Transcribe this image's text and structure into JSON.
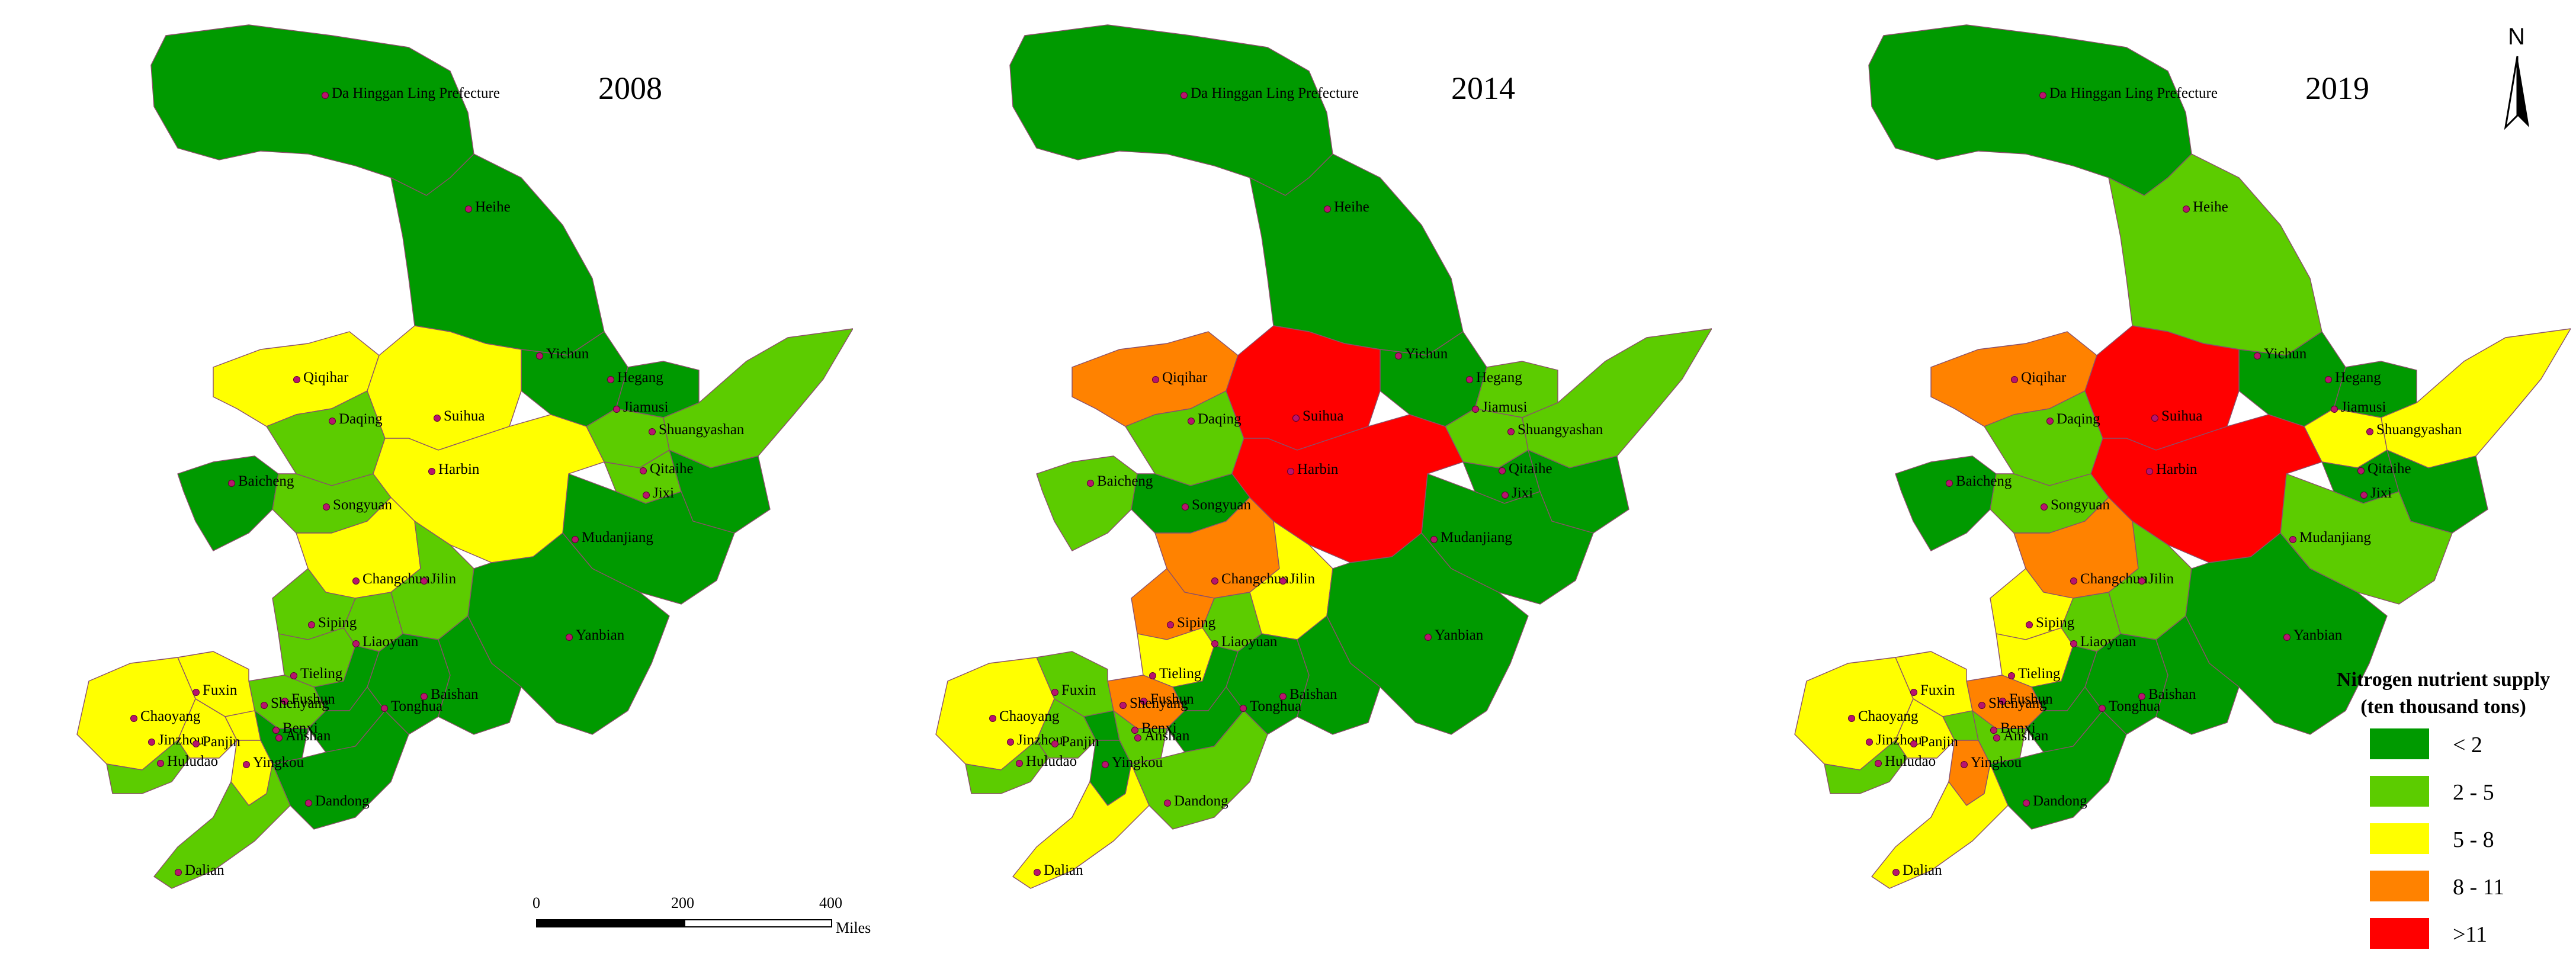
{
  "maps": [
    {
      "year": "2008",
      "classes": {
        "Da Hinggan Ling Prefecture": "lt2",
        "Heihe": "lt2",
        "Yichun": "lt2",
        "Hegang": "lt2",
        "Jiamusi": "c2_5",
        "Shuangyashan": "c2_5",
        "Qitaihe": "c2_5",
        "Jixi": "lt2",
        "Mudanjiang": "lt2",
        "Qiqihar": "c5_8",
        "Daqing": "c2_5",
        "Suihua": "c5_8",
        "Harbin": "c5_8",
        "Baicheng": "lt2",
        "Songyuan": "c2_5",
        "Changchun": "c5_8",
        "Jilin": "c2_5",
        "Siping": "c2_5",
        "Liaoyuan": "c2_5",
        "Yanbian": "lt2",
        "Tonghua": "lt2",
        "Baishan": "lt2",
        "Tieling": "c2_5",
        "Fushun": "lt2",
        "Shenyang": "c2_5",
        "Fuxin": "c5_8",
        "Chaoyang": "c5_8",
        "Jinzhou": "c5_8",
        "Huludao": "c2_5",
        "Panjin": "c5_8",
        "Anshan": "lt2",
        "Benxi": "lt2",
        "Yingkou": "c5_8",
        "Dandong": "lt2",
        "Dalian": "c2_5"
      }
    },
    {
      "year": "2014",
      "classes": {
        "Da Hinggan Ling Prefecture": "lt2",
        "Heihe": "lt2",
        "Yichun": "lt2",
        "Hegang": "c2_5",
        "Jiamusi": "c2_5",
        "Shuangyashan": "c2_5",
        "Qitaihe": "lt2",
        "Jixi": "lt2",
        "Mudanjiang": "lt2",
        "Qiqihar": "c8_11",
        "Daqing": "c2_5",
        "Suihua": "gt11",
        "Harbin": "gt11",
        "Baicheng": "c2_5",
        "Songyuan": "lt2",
        "Changchun": "c8_11",
        "Jilin": "c5_8",
        "Siping": "c8_11",
        "Liaoyuan": "c2_5",
        "Yanbian": "lt2",
        "Tonghua": "lt2",
        "Baishan": "lt2",
        "Tieling": "c5_8",
        "Fushun": "lt2",
        "Shenyang": "c8_11",
        "Fuxin": "c2_5",
        "Chaoyang": "c5_8",
        "Jinzhou": "c2_5",
        "Huludao": "c2_5",
        "Panjin": "lt2",
        "Anshan": "c2_5",
        "Benxi": "lt2",
        "Yingkou": "lt2",
        "Dandong": "c2_5",
        "Dalian": "c5_8"
      }
    },
    {
      "year": "2019",
      "classes": {
        "Da Hinggan Ling Prefecture": "lt2",
        "Heihe": "c2_5",
        "Yichun": "lt2",
        "Hegang": "lt2",
        "Jiamusi": "c5_8",
        "Shuangyashan": "c5_8",
        "Qitaihe": "lt2",
        "Jixi": "lt2",
        "Mudanjiang": "c2_5",
        "Qiqihar": "c8_11",
        "Daqing": "c2_5",
        "Suihua": "gt11",
        "Harbin": "gt11",
        "Baicheng": "lt2",
        "Songyuan": "c2_5",
        "Changchun": "c8_11",
        "Jilin": "c2_5",
        "Siping": "c5_8",
        "Liaoyuan": "c2_5",
        "Yanbian": "lt2",
        "Tonghua": "lt2",
        "Baishan": "lt2",
        "Tieling": "c5_8",
        "Fushun": "lt2",
        "Shenyang": "c8_11",
        "Fuxin": "c5_8",
        "Chaoyang": "c5_8",
        "Jinzhou": "c5_8",
        "Huludao": "c2_5",
        "Panjin": "c2_5",
        "Anshan": "c2_5",
        "Benxi": "lt2",
        "Yingkou": "c8_11",
        "Dandong": "lt2",
        "Dalian": "c5_8"
      }
    }
  ],
  "legend": {
    "title_line1": "Nitrogen nutrient supply",
    "title_line2": "(ten thousand tons)",
    "items": [
      {
        "key": "lt2",
        "label": "< 2",
        "color": "#009a00"
      },
      {
        "key": "c2_5",
        "label": "2 - 5",
        "color": "#5ccc00"
      },
      {
        "key": "c5_8",
        "label": "5 - 8",
        "color": "#ffff00"
      },
      {
        "key": "c8_11",
        "label": "8 - 11",
        "color": "#ff8200"
      },
      {
        "key": "gt11",
        "label": ">11",
        "color": "#ff0000"
      }
    ]
  },
  "scale_bar": {
    "ticks": [
      "0",
      "200",
      "400"
    ],
    "unit": "Miles"
  },
  "north_arrow": {
    "label": "N"
  },
  "colors": {
    "boundary": "#8a4f6b",
    "city_marker": "#b8146e"
  }
}
